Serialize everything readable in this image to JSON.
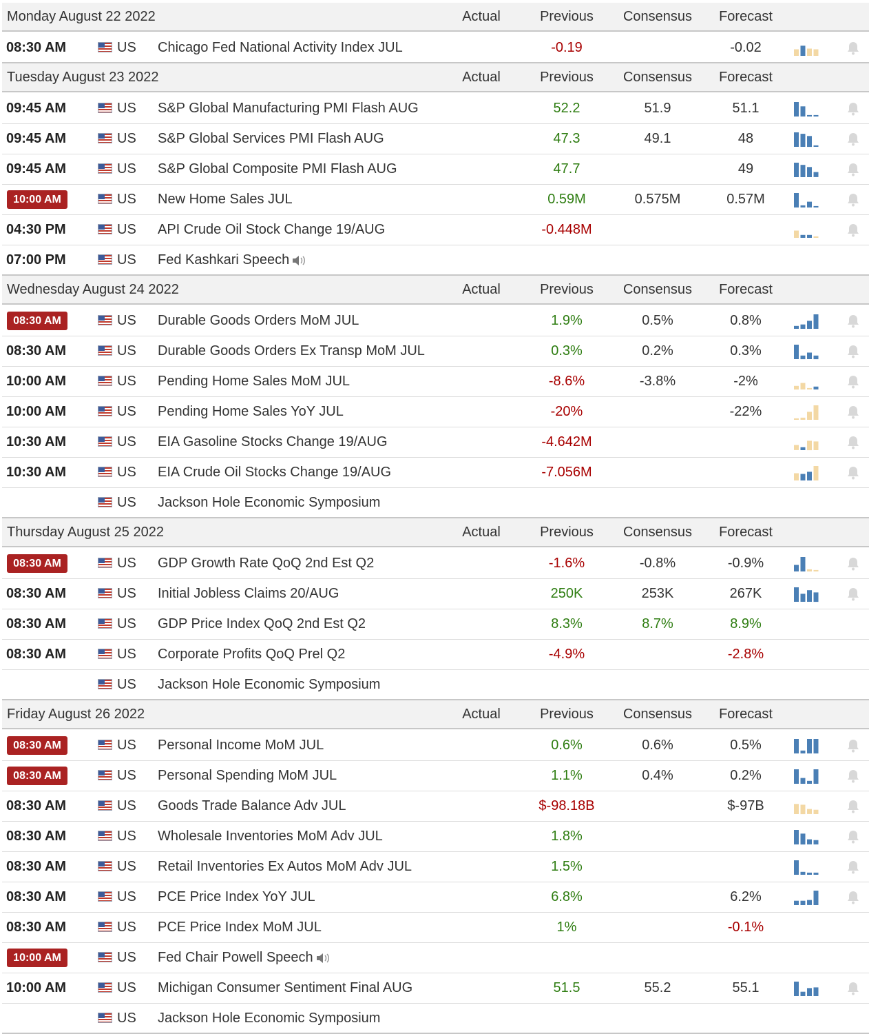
{
  "columns": {
    "actual": "Actual",
    "previous": "Previous",
    "consensus": "Consensus",
    "forecast": "Forecast"
  },
  "colors": {
    "highlight_badge": "#a22222",
    "negative": "#a80000",
    "positive": "#2e7d11",
    "spark_blue": "#4a7fb5",
    "spark_tan": "#f3d8a4"
  },
  "days": [
    {
      "date": "Monday August 22 2022",
      "events": [
        {
          "time": "08:30 AM",
          "hl": false,
          "country": "US",
          "event": "Chicago Fed National Activity Index JUL",
          "previous": "-0.19",
          "prev_color": "neg",
          "consensus": "",
          "cons_color": "neu",
          "forecast": "-0.02",
          "fore_color": "neu",
          "spark": [
            [
              "t",
              0.45
            ],
            [
              "b",
              0.7
            ],
            [
              "t",
              0.5
            ],
            [
              "t",
              0.45
            ]
          ],
          "bell": true,
          "speaker": false
        }
      ]
    },
    {
      "date": "Tuesday August 23 2022",
      "events": [
        {
          "time": "09:45 AM",
          "hl": false,
          "country": "US",
          "event": "S&P Global Manufacturing PMI Flash AUG",
          "previous": "52.2",
          "prev_color": "pos",
          "consensus": "51.9",
          "cons_color": "neu",
          "forecast": "51.1",
          "fore_color": "neu",
          "spark": [
            [
              "b",
              1
            ],
            [
              "b",
              0.7
            ],
            [
              "b",
              0.1
            ],
            [
              "b",
              0.1
            ]
          ],
          "bell": true,
          "speaker": false
        },
        {
          "time": "09:45 AM",
          "hl": false,
          "country": "US",
          "event": "S&P Global Services PMI Flash AUG",
          "previous": "47.3",
          "prev_color": "pos",
          "consensus": "49.1",
          "cons_color": "neu",
          "forecast": "48",
          "fore_color": "neu",
          "spark": [
            [
              "b",
              1
            ],
            [
              "b",
              0.9
            ],
            [
              "b",
              0.75
            ],
            [
              "b",
              0.1
            ]
          ],
          "bell": true,
          "speaker": false
        },
        {
          "time": "09:45 AM",
          "hl": false,
          "country": "US",
          "event": "S&P Global Composite PMI Flash AUG",
          "previous": "47.7",
          "prev_color": "pos",
          "consensus": "",
          "cons_color": "neu",
          "forecast": "49",
          "fore_color": "neu",
          "spark": [
            [
              "b",
              1
            ],
            [
              "b",
              0.85
            ],
            [
              "b",
              0.7
            ],
            [
              "b",
              0.35
            ]
          ],
          "bell": true,
          "speaker": false
        },
        {
          "time": "10:00 AM",
          "hl": true,
          "country": "US",
          "event": "New Home Sales JUL",
          "previous": "0.59M",
          "prev_color": "pos",
          "consensus": "0.575M",
          "cons_color": "neu",
          "forecast": "0.57M",
          "fore_color": "neu",
          "spark": [
            [
              "b",
              1
            ],
            [
              "b",
              0.15
            ],
            [
              "b",
              0.4
            ],
            [
              "b",
              0.1
            ]
          ],
          "bell": true,
          "speaker": false
        },
        {
          "time": "04:30 PM",
          "hl": false,
          "country": "US",
          "event": "API Crude Oil Stock Change 19/AUG",
          "previous": "-0.448M",
          "prev_color": "neg",
          "consensus": "",
          "cons_color": "neu",
          "forecast": "",
          "fore_color": "neu",
          "spark": [
            [
              "t",
              0.5
            ],
            [
              "b",
              0.2
            ],
            [
              "b",
              0.2
            ],
            [
              "t",
              0.1
            ]
          ],
          "bell": true,
          "speaker": false
        },
        {
          "time": "07:00 PM",
          "hl": false,
          "country": "US",
          "event": "Fed Kashkari Speech",
          "previous": "",
          "prev_color": "neu",
          "consensus": "",
          "cons_color": "neu",
          "forecast": "",
          "fore_color": "neu",
          "spark": [],
          "bell": false,
          "speaker": true
        }
      ]
    },
    {
      "date": "Wednesday August 24 2022",
      "events": [
        {
          "time": "08:30 AM",
          "hl": true,
          "country": "US",
          "event": "Durable Goods Orders MoM JUL",
          "previous": "1.9%",
          "prev_color": "pos",
          "consensus": "0.5%",
          "cons_color": "neu",
          "forecast": "0.8%",
          "fore_color": "neu",
          "spark": [
            [
              "b",
              0.2
            ],
            [
              "b",
              0.3
            ],
            [
              "b",
              0.55
            ],
            [
              "b",
              1
            ]
          ],
          "bell": true,
          "speaker": false
        },
        {
          "time": "08:30 AM",
          "hl": false,
          "country": "US",
          "event": "Durable Goods Orders Ex Transp MoM JUL",
          "previous": "0.3%",
          "prev_color": "pos",
          "consensus": "0.2%",
          "cons_color": "neu",
          "forecast": "0.3%",
          "fore_color": "neu",
          "spark": [
            [
              "b",
              1
            ],
            [
              "b",
              0.25
            ],
            [
              "b",
              0.45
            ],
            [
              "b",
              0.25
            ]
          ],
          "bell": true,
          "speaker": false
        },
        {
          "time": "10:00 AM",
          "hl": false,
          "country": "US",
          "event": "Pending Home Sales MoM JUL",
          "previous": "-8.6%",
          "prev_color": "neg",
          "consensus": "-3.8%",
          "cons_color": "neu",
          "forecast": "-2%",
          "fore_color": "neu",
          "spark": [
            [
              "t",
              0.25
            ],
            [
              "t",
              0.45
            ],
            [
              "t",
              0.1
            ],
            [
              "b",
              0.2
            ]
          ],
          "bell": true,
          "speaker": false
        },
        {
          "time": "10:00 AM",
          "hl": false,
          "country": "US",
          "event": "Pending Home Sales YoY JUL",
          "previous": "-20%",
          "prev_color": "neg",
          "consensus": "",
          "cons_color": "neu",
          "forecast": "-22%",
          "fore_color": "neu",
          "spark": [
            [
              "t",
              0.1
            ],
            [
              "t",
              0.15
            ],
            [
              "t",
              0.55
            ],
            [
              "t",
              1
            ]
          ],
          "bell": true,
          "speaker": false
        },
        {
          "time": "10:30 AM",
          "hl": false,
          "country": "US",
          "event": "EIA Gasoline Stocks Change 19/AUG",
          "previous": "-4.642M",
          "prev_color": "neg",
          "consensus": "",
          "cons_color": "neu",
          "forecast": "",
          "fore_color": "neu",
          "spark": [
            [
              "t",
              0.35
            ],
            [
              "b",
              0.2
            ],
            [
              "t",
              0.65
            ],
            [
              "t",
              0.6
            ]
          ],
          "bell": true,
          "speaker": false
        },
        {
          "time": "10:30 AM",
          "hl": false,
          "country": "US",
          "event": "EIA Crude Oil Stocks Change 19/AUG",
          "previous": "-7.056M",
          "prev_color": "neg",
          "consensus": "",
          "cons_color": "neu",
          "forecast": "",
          "fore_color": "neu",
          "spark": [
            [
              "t",
              0.5
            ],
            [
              "b",
              0.45
            ],
            [
              "b",
              0.6
            ],
            [
              "t",
              1
            ]
          ],
          "bell": true,
          "speaker": false
        },
        {
          "time": "",
          "hl": false,
          "country": "US",
          "event": "Jackson Hole Economic Symposium",
          "previous": "",
          "prev_color": "neu",
          "consensus": "",
          "cons_color": "neu",
          "forecast": "",
          "fore_color": "neu",
          "spark": [],
          "bell": false,
          "speaker": false
        }
      ]
    },
    {
      "date": "Thursday August 25 2022",
      "events": [
        {
          "time": "08:30 AM",
          "hl": true,
          "country": "US",
          "event": "GDP Growth Rate QoQ 2nd Est Q2",
          "previous": "-1.6%",
          "prev_color": "neg",
          "consensus": "-0.8%",
          "cons_color": "neu",
          "forecast": "-0.9%",
          "fore_color": "neu",
          "spark": [
            [
              "b",
              0.45
            ],
            [
              "b",
              1
            ],
            [
              "t",
              0.15
            ],
            [
              "t",
              0.1
            ]
          ],
          "bell": true,
          "speaker": false
        },
        {
          "time": "08:30 AM",
          "hl": false,
          "country": "US",
          "event": "Initial Jobless Claims 20/AUG",
          "previous": "250K",
          "prev_color": "pos",
          "consensus": "253K",
          "cons_color": "neu",
          "forecast": "267K",
          "fore_color": "neu",
          "spark": [
            [
              "b",
              1
            ],
            [
              "b",
              0.55
            ],
            [
              "b",
              0.8
            ],
            [
              "b",
              0.65
            ]
          ],
          "bell": true,
          "speaker": false
        },
        {
          "time": "08:30 AM",
          "hl": false,
          "country": "US",
          "event": "GDP Price Index QoQ 2nd Est Q2",
          "previous": "8.3%",
          "prev_color": "pos",
          "consensus": "8.7%",
          "cons_color": "pos",
          "forecast": "8.9%",
          "fore_color": "pos",
          "spark": [],
          "bell": false,
          "speaker": false
        },
        {
          "time": "08:30 AM",
          "hl": false,
          "country": "US",
          "event": "Corporate Profits QoQ Prel Q2",
          "previous": "-4.9%",
          "prev_color": "neg",
          "consensus": "",
          "cons_color": "neu",
          "forecast": "-2.8%",
          "fore_color": "neg",
          "spark": [],
          "bell": false,
          "speaker": false
        },
        {
          "time": "",
          "hl": false,
          "country": "US",
          "event": "Jackson Hole Economic Symposium",
          "previous": "",
          "prev_color": "neu",
          "consensus": "",
          "cons_color": "neu",
          "forecast": "",
          "fore_color": "neu",
          "spark": [],
          "bell": false,
          "speaker": false
        }
      ]
    },
    {
      "date": "Friday August 26 2022",
      "events": [
        {
          "time": "08:30 AM",
          "hl": true,
          "country": "US",
          "event": "Personal Income MoM JUL",
          "previous": "0.6%",
          "prev_color": "pos",
          "consensus": "0.6%",
          "cons_color": "neu",
          "forecast": "0.5%",
          "fore_color": "neu",
          "spark": [
            [
              "b",
              1
            ],
            [
              "b",
              0.2
            ],
            [
              "b",
              1
            ],
            [
              "b",
              1
            ]
          ],
          "bell": true,
          "speaker": false
        },
        {
          "time": "08:30 AM",
          "hl": true,
          "country": "US",
          "event": "Personal Spending MoM JUL",
          "previous": "1.1%",
          "prev_color": "pos",
          "consensus": "0.4%",
          "cons_color": "neu",
          "forecast": "0.2%",
          "fore_color": "neu",
          "spark": [
            [
              "b",
              1
            ],
            [
              "b",
              0.4
            ],
            [
              "b",
              0.2
            ],
            [
              "b",
              1
            ]
          ],
          "bell": true,
          "speaker": false
        },
        {
          "time": "08:30 AM",
          "hl": false,
          "country": "US",
          "event": "Goods Trade Balance Adv JUL",
          "previous": "$-98.18B",
          "prev_color": "neg",
          "consensus": "",
          "cons_color": "neu",
          "forecast": "$-97B",
          "fore_color": "neu",
          "spark": [
            [
              "t",
              0.7
            ],
            [
              "t",
              0.65
            ],
            [
              "t",
              0.35
            ],
            [
              "t",
              0.3
            ]
          ],
          "bell": true,
          "speaker": false
        },
        {
          "time": "08:30 AM",
          "hl": false,
          "country": "US",
          "event": "Wholesale Inventories MoM Adv JUL",
          "previous": "1.8%",
          "prev_color": "pos",
          "consensus": "",
          "cons_color": "neu",
          "forecast": "",
          "fore_color": "neu",
          "spark": [
            [
              "b",
              1
            ],
            [
              "b",
              0.75
            ],
            [
              "b",
              0.35
            ],
            [
              "b",
              0.3
            ]
          ],
          "bell": true,
          "speaker": false
        },
        {
          "time": "08:30 AM",
          "hl": false,
          "country": "US",
          "event": "Retail Inventories Ex Autos MoM Adv JUL",
          "previous": "1.5%",
          "prev_color": "pos",
          "consensus": "",
          "cons_color": "neu",
          "forecast": "",
          "fore_color": "neu",
          "spark": [
            [
              "b",
              1
            ],
            [
              "b",
              0.2
            ],
            [
              "b",
              0.15
            ],
            [
              "b",
              0.15
            ]
          ],
          "bell": true,
          "speaker": false
        },
        {
          "time": "08:30 AM",
          "hl": false,
          "country": "US",
          "event": "PCE Price Index YoY JUL",
          "previous": "6.8%",
          "prev_color": "pos",
          "consensus": "",
          "cons_color": "neu",
          "forecast": "6.2%",
          "fore_color": "neu",
          "spark": [
            [
              "b",
              0.3
            ],
            [
              "b",
              0.3
            ],
            [
              "b",
              0.35
            ],
            [
              "b",
              1
            ]
          ],
          "bell": true,
          "speaker": false
        },
        {
          "time": "08:30 AM",
          "hl": false,
          "country": "US",
          "event": "PCE Price Index MoM JUL",
          "previous": "1%",
          "prev_color": "pos",
          "consensus": "",
          "cons_color": "neu",
          "forecast": "-0.1%",
          "fore_color": "neg",
          "spark": [],
          "bell": false,
          "speaker": false
        },
        {
          "time": "10:00 AM",
          "hl": true,
          "country": "US",
          "event": "Fed Chair Powell Speech",
          "previous": "",
          "prev_color": "neu",
          "consensus": "",
          "cons_color": "neu",
          "forecast": "",
          "fore_color": "neu",
          "spark": [],
          "bell": false,
          "speaker": true
        },
        {
          "time": "10:00 AM",
          "hl": false,
          "country": "US",
          "event": "Michigan Consumer Sentiment Final AUG",
          "previous": "51.5",
          "prev_color": "pos",
          "consensus": "55.2",
          "cons_color": "neu",
          "forecast": "55.1",
          "fore_color": "neu",
          "spark": [
            [
              "b",
              1
            ],
            [
              "b",
              0.3
            ],
            [
              "b",
              0.55
            ],
            [
              "b",
              0.6
            ]
          ],
          "bell": true,
          "speaker": false
        },
        {
          "time": "",
          "hl": false,
          "country": "US",
          "event": "Jackson Hole Economic Symposium",
          "previous": "",
          "prev_color": "neu",
          "consensus": "",
          "cons_color": "neu",
          "forecast": "",
          "fore_color": "neu",
          "spark": [],
          "bell": false,
          "speaker": false
        }
      ]
    }
  ]
}
